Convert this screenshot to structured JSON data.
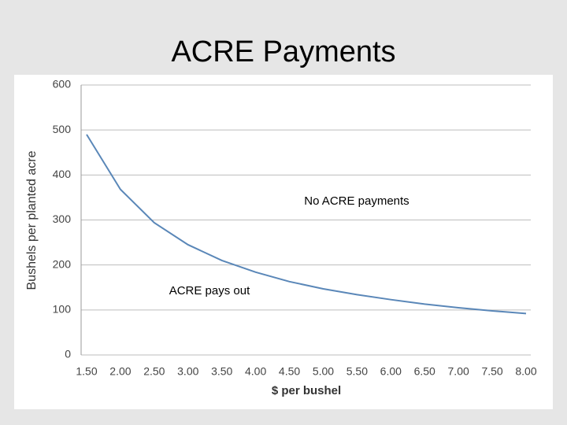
{
  "chart_data": {
    "type": "line",
    "title": "ACRE Payments",
    "x_label": "$ per bushel",
    "y_label": "Bushels per planted acre",
    "annotations": [
      "No ACRE payments",
      "ACRE pays out"
    ],
    "x": [
      1.5,
      2.0,
      2.5,
      3.0,
      3.5,
      4.0,
      4.5,
      5.0,
      5.5,
      6.0,
      6.5,
      7.0,
      7.5,
      8.0
    ],
    "series": [
      {
        "color": "#5a87b8",
        "values": [
          490,
          368,
          294,
          245,
          210,
          184,
          163,
          147,
          134,
          123,
          113,
          105,
          98,
          92
        ]
      }
    ],
    "xlim": [
      1.5,
      8.0
    ],
    "xticks": [
      {
        "value": 1.5,
        "label": "1.50"
      },
      {
        "value": 2.0,
        "label": "2.00"
      },
      {
        "value": 2.5,
        "label": "2.50"
      },
      {
        "value": 3.0,
        "label": "3.00"
      },
      {
        "value": 3.5,
        "label": "3.50"
      },
      {
        "value": 4.0,
        "label": "4.00"
      },
      {
        "value": 4.5,
        "label": "4.50"
      },
      {
        "value": 5.0,
        "label": "5.00"
      },
      {
        "value": 5.5,
        "label": "5.50"
      },
      {
        "value": 6.0,
        "label": "6.00"
      },
      {
        "value": 6.5,
        "label": "6.50"
      },
      {
        "value": 7.0,
        "label": "7.00"
      },
      {
        "value": 7.5,
        "label": "7.50"
      },
      {
        "value": 8.0,
        "label": "8.00"
      }
    ],
    "ylim": [
      0,
      600
    ],
    "yticks": [
      0,
      100,
      200,
      300,
      400,
      500,
      600
    ],
    "grid": true
  }
}
